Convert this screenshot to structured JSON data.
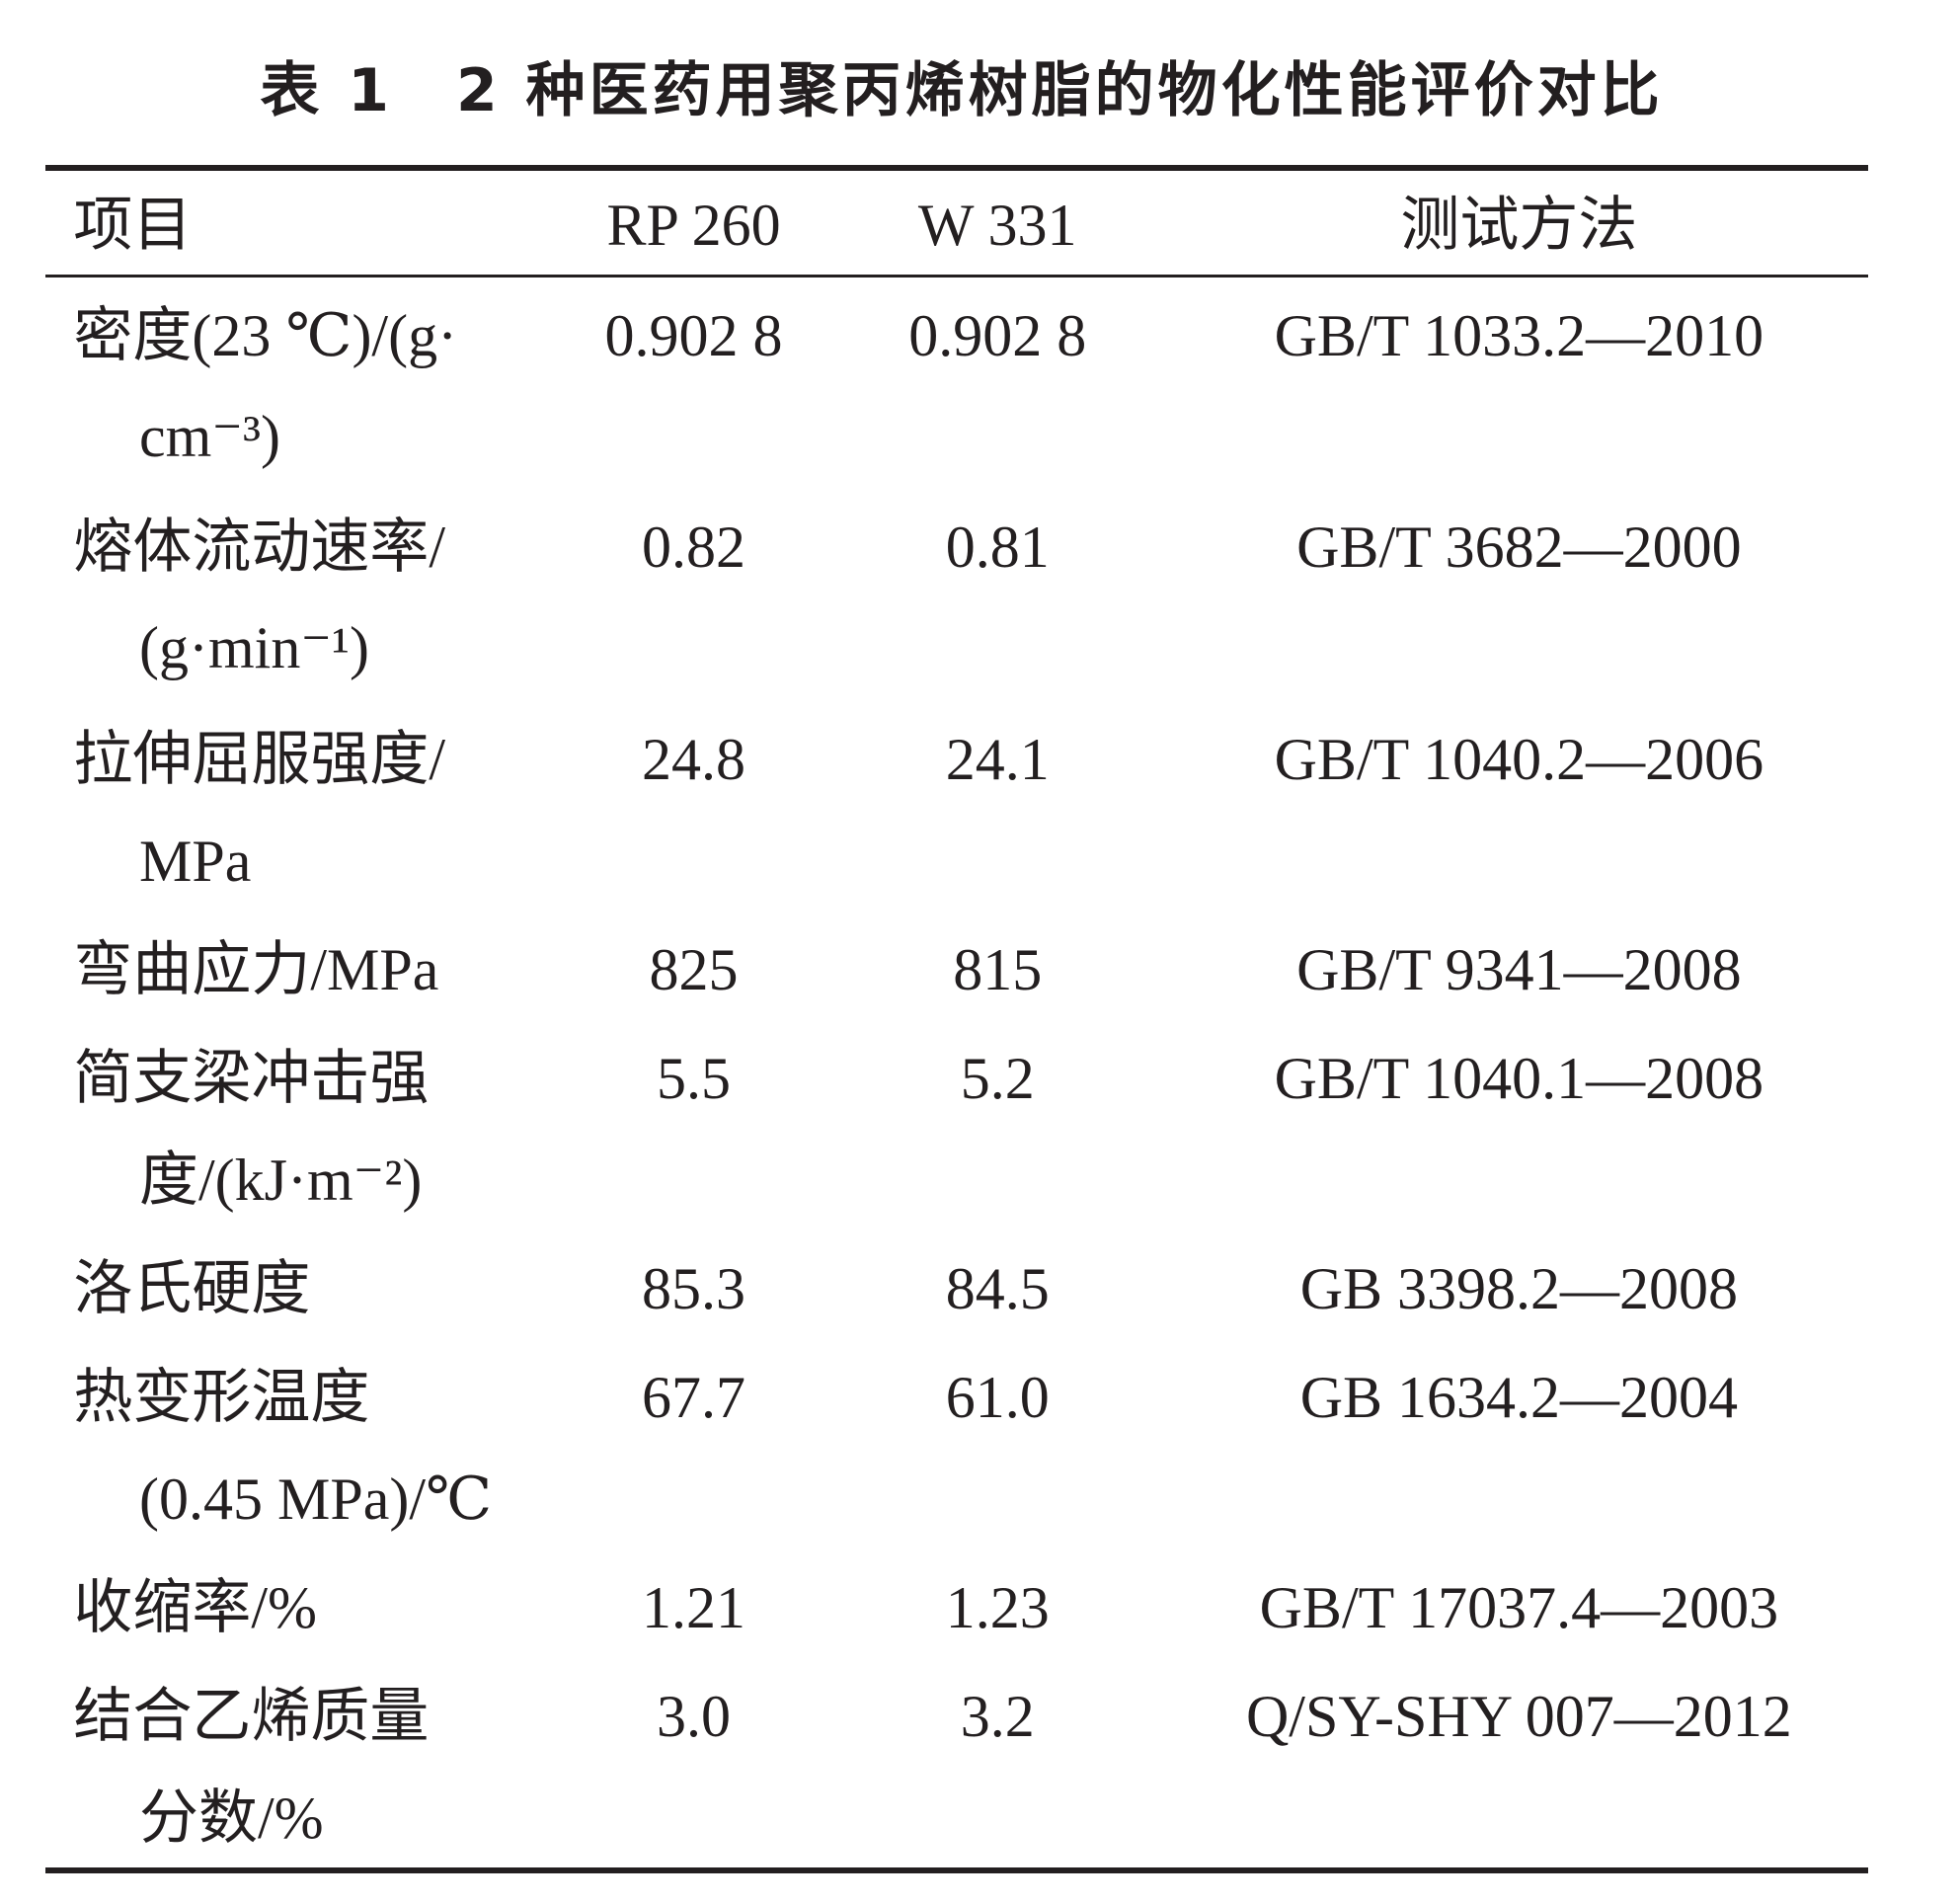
{
  "title": "表 1　2 种医药用聚丙烯树脂的物化性能评价对比",
  "table": {
    "header": [
      "项目",
      "RP 260",
      "W 331",
      "测试方法"
    ],
    "rows": [
      [
        [
          "密度(23 ℃)/(g·",
          "cm⁻³)"
        ],
        "0.902 8",
        "0.902 8",
        "GB/T 1033.2—2010"
      ],
      [
        [
          "熔体流动速率/",
          "(g·min⁻¹)"
        ],
        "0.82",
        "0.81",
        "GB/T 3682—2000"
      ],
      [
        [
          "拉伸屈服强度/",
          "MPa"
        ],
        "24.8",
        "24.1",
        "GB/T 1040.2—2006"
      ],
      [
        [
          "弯曲应力/MPa"
        ],
        "825",
        "815",
        "GB/T 9341—2008"
      ],
      [
        [
          "简支梁冲击强",
          "度/(kJ·m⁻²)"
        ],
        "5.5",
        "5.2",
        "GB/T 1040.1—2008"
      ],
      [
        [
          "洛氏硬度"
        ],
        "85.3",
        "84.5",
        "GB 3398.2—2008"
      ],
      [
        [
          "热变形温度",
          "(0.45 MPa)/℃"
        ],
        "67.7",
        "61.0",
        "GB 1634.2—2004"
      ],
      [
        [
          "收缩率/%"
        ],
        "1.21",
        "1.23",
        "GB/T 17037.4—2003"
      ],
      [
        [
          "结合乙烯质量",
          "分数/%"
        ],
        "3.0",
        "3.2",
        "Q/SY-SHY 007—2012"
      ]
    ]
  }
}
